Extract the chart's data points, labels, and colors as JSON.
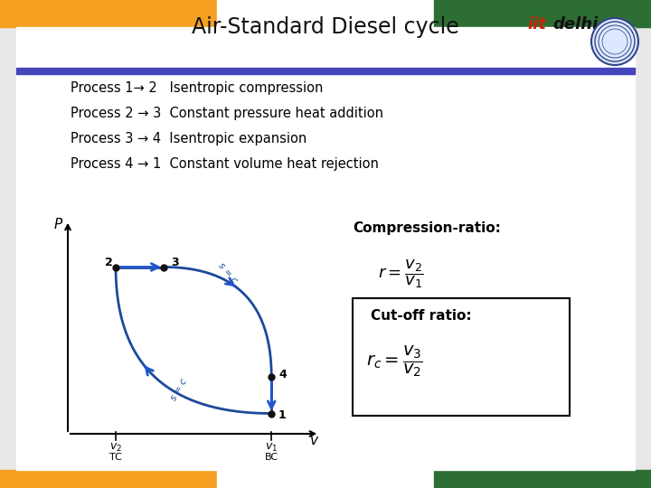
{
  "title": "Air-Standard Diesel cycle",
  "title_fontsize": 17,
  "title_color": "#111111",
  "background_color": "#e8e8e8",
  "header_bar_color": "#4444bb",
  "iitd_text_iit": "iit",
  "iitd_text_delhi": "delhi",
  "iitd_color_iit": "#cc2200",
  "iitd_color_delhi": "#111111",
  "process_lines": [
    "Process 1→ 2   Isentropic compression",
    "Process 2 → 3  Constant pressure heat addition",
    "Process 3 → 4  Isentropic expansion",
    "Process 4 → 1  Constant volume heat rejection"
  ],
  "process_fontsize": 10.5,
  "compression_ratio_text": "Compression-ratio:",
  "compression_ratio_formula": "$r = \\dfrac{v_2}{v_1}$",
  "cutoff_ratio_text": "Cut-off ratio:",
  "cutoff_ratio_formula": "$r_c = \\dfrac{v_3}{v_2}$",
  "diagram_curve_color": "#1a4a9a",
  "diagram_arrow_color": "#2255cc",
  "point_color": "#111111",
  "point_size": 5,
  "p_label": "$P$",
  "v_label": "$v$",
  "v2_label": "$v_2$",
  "v1_label": "$v_1$",
  "tc_label": "TC",
  "bc_label": "BC",
  "orange_color": "#f5a020",
  "green_color": "#2d6e35",
  "white_color": "#ffffff",
  "panel_color": "#f0f0f0"
}
